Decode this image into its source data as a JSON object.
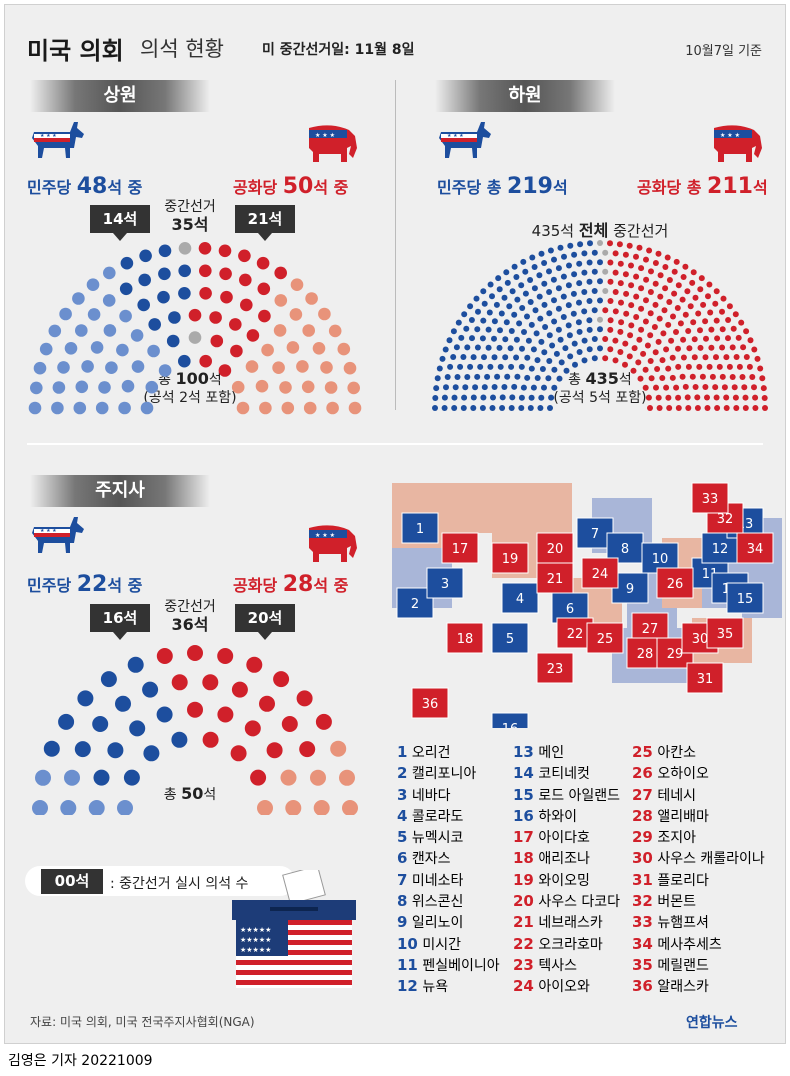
{
  "title": {
    "main": "미국 의회",
    "sub": "의석 현황",
    "election_date": "미 중간선거일: 11월 8일",
    "basis": "10월7일 기준"
  },
  "colors": {
    "dem": "#1d4e9e",
    "dem_light": "#6b8fce",
    "rep": "#d0202a",
    "rep_light": "#e8937a",
    "vacant": "#aaaaaa"
  },
  "senate": {
    "label": "상원",
    "dem_prefix": "민주당",
    "dem_count": "48",
    "dem_suffix": "석 중",
    "rep_prefix": "공화당",
    "rep_count": "50",
    "rep_suffix": "석 중",
    "dem_callout": "14석",
    "rep_callout": "21석",
    "midterm_label": "중간선거",
    "midterm_count": "35석",
    "total_label": "총",
    "total_count": "100",
    "total_unit": "석",
    "vacant_note": "(공석 2석 포함)"
  },
  "house": {
    "label": "하원",
    "dem_prefix": "민주당 총",
    "dem_count": "219",
    "dem_suffix": "석",
    "rep_prefix": "공화당 총",
    "rep_count": "211",
    "rep_suffix": "석",
    "midterm_prefix": "435석",
    "midterm_bold": "전체",
    "midterm_suffix": "중간선거",
    "total_label": "총",
    "total_count": "435",
    "total_unit": "석",
    "vacant_note": "(공석 5석 포함)"
  },
  "governors": {
    "label": "주지사",
    "dem_prefix": "민주당",
    "dem_count": "22",
    "dem_suffix": "석 중",
    "rep_prefix": "공화당",
    "rep_count": "28",
    "rep_suffix": "석 중",
    "dem_callout": "16석",
    "rep_callout": "20석",
    "midterm_label": "중간선거",
    "midterm_count": "36석",
    "total_label": "총",
    "total_count": "50",
    "total_unit": "석"
  },
  "legend": {
    "chip": "00석",
    "text": ": 중간선거 실시 의석 수"
  },
  "chart_data": [
    {
      "type": "parliament",
      "name": "상원",
      "total": 100,
      "segments": [
        {
          "party": "민주당 (비선거)",
          "value": 34
        },
        {
          "party": "민주당 (중간선거)",
          "value": 14
        },
        {
          "party": "공석",
          "value": 2
        },
        {
          "party": "공화당 (중간선거)",
          "value": 21
        },
        {
          "party": "공화당 (비선거)",
          "value": 29
        }
      ]
    },
    {
      "type": "parliament",
      "name": "하원",
      "total": 435,
      "segments": [
        {
          "party": "민주당",
          "value": 219
        },
        {
          "party": "공석",
          "value": 5
        },
        {
          "party": "공화당",
          "value": 211
        }
      ]
    },
    {
      "type": "parliament",
      "name": "주지사",
      "total": 50,
      "segments": [
        {
          "party": "민주당 (비선거)",
          "value": 6
        },
        {
          "party": "민주당 (중간선거)",
          "value": 16
        },
        {
          "party": "공화당 (중간선거)",
          "value": 20
        },
        {
          "party": "공화당 (비선거)",
          "value": 8
        }
      ]
    }
  ],
  "states": [
    {
      "num": "1",
      "name": "오리건",
      "party": "dem"
    },
    {
      "num": "2",
      "name": "캘리포니아",
      "party": "dem"
    },
    {
      "num": "3",
      "name": "네바다",
      "party": "dem"
    },
    {
      "num": "4",
      "name": "콜로라도",
      "party": "dem"
    },
    {
      "num": "5",
      "name": "뉴멕시코",
      "party": "dem"
    },
    {
      "num": "6",
      "name": "캔자스",
      "party": "dem"
    },
    {
      "num": "7",
      "name": "미네소타",
      "party": "dem"
    },
    {
      "num": "8",
      "name": "위스콘신",
      "party": "dem"
    },
    {
      "num": "9",
      "name": "일리노이",
      "party": "dem"
    },
    {
      "num": "10",
      "name": "미시간",
      "party": "dem"
    },
    {
      "num": "11",
      "name": "펜실베이니아",
      "party": "dem"
    },
    {
      "num": "12",
      "name": "뉴욕",
      "party": "dem"
    },
    {
      "num": "13",
      "name": "메인",
      "party": "dem"
    },
    {
      "num": "14",
      "name": "코티네컷",
      "party": "dem"
    },
    {
      "num": "15",
      "name": "로드 아일랜드",
      "party": "dem"
    },
    {
      "num": "16",
      "name": "하와이",
      "party": "dem"
    },
    {
      "num": "17",
      "name": "아이다호",
      "party": "rep"
    },
    {
      "num": "18",
      "name": "애리조나",
      "party": "rep"
    },
    {
      "num": "19",
      "name": "와이오밍",
      "party": "rep"
    },
    {
      "num": "20",
      "name": "사우스 다코다",
      "party": "rep"
    },
    {
      "num": "21",
      "name": "네브래스카",
      "party": "rep"
    },
    {
      "num": "22",
      "name": "오크라호마",
      "party": "rep"
    },
    {
      "num": "23",
      "name": "텍사스",
      "party": "rep"
    },
    {
      "num": "24",
      "name": "아이오와",
      "party": "rep"
    },
    {
      "num": "25",
      "name": "아칸소",
      "party": "rep"
    },
    {
      "num": "26",
      "name": "오하이오",
      "party": "rep"
    },
    {
      "num": "27",
      "name": "테네시",
      "party": "rep"
    },
    {
      "num": "28",
      "name": "앨리배마",
      "party": "rep"
    },
    {
      "num": "29",
      "name": "조지아",
      "party": "rep"
    },
    {
      "num": "30",
      "name": "사우스 캐롤라이나",
      "party": "rep"
    },
    {
      "num": "31",
      "name": "플로리다",
      "party": "rep"
    },
    {
      "num": "32",
      "name": "버몬트",
      "party": "rep"
    },
    {
      "num": "33",
      "name": "뉴햄프셔",
      "party": "rep"
    },
    {
      "num": "34",
      "name": "메사추세츠",
      "party": "rep"
    },
    {
      "num": "35",
      "name": "메릴랜드",
      "party": "rep"
    },
    {
      "num": "36",
      "name": "알래스카",
      "party": "rep"
    }
  ],
  "footer": {
    "source": "자료: 미국 의회, 미국 전국주지사협회(NGA)",
    "logo": "연합뉴스",
    "byline": "김영은 기자  20221009"
  }
}
